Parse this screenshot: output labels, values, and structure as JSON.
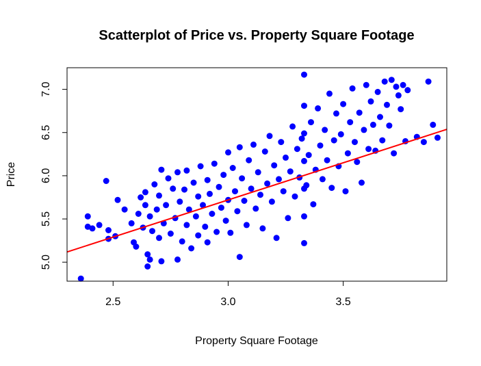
{
  "chart_data": {
    "type": "scatter",
    "title": "Scatterplot of Price vs. Property Square Footage",
    "xlabel": "Property Square Footage",
    "ylabel": "Price",
    "xlim": [
      2.3,
      3.95
    ],
    "ylim": [
      4.78,
      7.25
    ],
    "x_ticks": [
      2.5,
      3.0,
      3.5
    ],
    "x_tick_labels": [
      "2.5",
      "3.0",
      "3.5"
    ],
    "y_ticks": [
      5.0,
      5.5,
      6.0,
      6.5,
      7.0
    ],
    "y_tick_labels": [
      "5.0",
      "5.5",
      "6.0",
      "6.5",
      "7.0"
    ],
    "grid": false,
    "legend": "none",
    "point_color": "#0000ff",
    "line_color": "#ff0000",
    "regression_line": {
      "intercept": 3.14,
      "slope": 0.86
    },
    "series": [
      {
        "values": [
          [
            2.36,
            4.81
          ],
          [
            2.39,
            5.53
          ],
          [
            2.39,
            5.41
          ],
          [
            2.41,
            5.39
          ],
          [
            2.44,
            5.43
          ],
          [
            2.47,
            5.94
          ],
          [
            2.48,
            5.27
          ],
          [
            2.48,
            5.37
          ],
          [
            2.51,
            5.3
          ],
          [
            2.52,
            5.72
          ],
          [
            2.55,
            5.61
          ],
          [
            2.58,
            5.45
          ],
          [
            2.59,
            5.23
          ],
          [
            2.6,
            5.18
          ],
          [
            2.61,
            5.56
          ],
          [
            2.62,
            5.75
          ],
          [
            2.63,
            5.4
          ],
          [
            2.64,
            5.66
          ],
          [
            2.64,
            5.81
          ],
          [
            2.65,
            5.09
          ],
          [
            2.65,
            4.95
          ],
          [
            2.66,
            5.03
          ],
          [
            2.66,
            5.53
          ],
          [
            2.67,
            5.36
          ],
          [
            2.68,
            5.9
          ],
          [
            2.69,
            5.61
          ],
          [
            2.7,
            5.28
          ],
          [
            2.7,
            5.77
          ],
          [
            2.71,
            5.01
          ],
          [
            2.71,
            6.07
          ],
          [
            2.72,
            5.45
          ],
          [
            2.73,
            5.66
          ],
          [
            2.74,
            5.97
          ],
          [
            2.75,
            5.33
          ],
          [
            2.76,
            5.85
          ],
          [
            2.77,
            5.51
          ],
          [
            2.78,
            5.03
          ],
          [
            2.78,
            6.04
          ],
          [
            2.79,
            5.7
          ],
          [
            2.8,
            5.24
          ],
          [
            2.81,
            5.84
          ],
          [
            2.82,
            5.43
          ],
          [
            2.82,
            6.06
          ],
          [
            2.83,
            5.61
          ],
          [
            2.84,
            5.16
          ],
          [
            2.85,
            5.92
          ],
          [
            2.86,
            5.53
          ],
          [
            2.87,
            5.76
          ],
          [
            2.87,
            5.31
          ],
          [
            2.88,
            6.11
          ],
          [
            2.89,
            5.66
          ],
          [
            2.9,
            5.41
          ],
          [
            2.91,
            5.95
          ],
          [
            2.91,
            5.23
          ],
          [
            2.92,
            5.79
          ],
          [
            2.93,
            5.56
          ],
          [
            2.94,
            6.14
          ],
          [
            2.95,
            5.35
          ],
          [
            2.96,
            5.87
          ],
          [
            2.97,
            5.63
          ],
          [
            2.98,
            6.01
          ],
          [
            2.99,
            5.48
          ],
          [
            3.0,
            6.27
          ],
          [
            3.0,
            5.72
          ],
          [
            3.01,
            5.34
          ],
          [
            3.02,
            6.09
          ],
          [
            3.03,
            5.82
          ],
          [
            3.04,
            5.59
          ],
          [
            3.05,
            5.06
          ],
          [
            3.05,
            6.33
          ],
          [
            3.06,
            5.97
          ],
          [
            3.07,
            5.71
          ],
          [
            3.08,
            5.43
          ],
          [
            3.09,
            6.18
          ],
          [
            3.1,
            5.85
          ],
          [
            3.11,
            6.36
          ],
          [
            3.12,
            5.62
          ],
          [
            3.13,
            6.04
          ],
          [
            3.14,
            5.78
          ],
          [
            3.15,
            5.39
          ],
          [
            3.16,
            6.28
          ],
          [
            3.17,
            5.91
          ],
          [
            3.18,
            6.46
          ],
          [
            3.19,
            5.7
          ],
          [
            3.2,
            6.12
          ],
          [
            3.21,
            5.28
          ],
          [
            3.22,
            5.96
          ],
          [
            3.23,
            6.39
          ],
          [
            3.24,
            5.82
          ],
          [
            3.25,
            6.21
          ],
          [
            3.26,
            5.51
          ],
          [
            3.27,
            6.05
          ],
          [
            3.28,
            6.57
          ],
          [
            3.29,
            5.76
          ],
          [
            3.3,
            6.31
          ],
          [
            3.31,
            5.98
          ],
          [
            3.32,
            6.43
          ],
          [
            3.33,
            5.22
          ],
          [
            3.33,
            5.53
          ],
          [
            3.33,
            5.85
          ],
          [
            3.33,
            6.17
          ],
          [
            3.33,
            6.49
          ],
          [
            3.33,
            6.81
          ],
          [
            3.33,
            7.17
          ],
          [
            3.34,
            5.89
          ],
          [
            3.35,
            6.24
          ],
          [
            3.36,
            6.62
          ],
          [
            3.37,
            5.67
          ],
          [
            3.38,
            6.07
          ],
          [
            3.39,
            6.78
          ],
          [
            3.4,
            6.35
          ],
          [
            3.41,
            5.96
          ],
          [
            3.42,
            6.53
          ],
          [
            3.43,
            6.18
          ],
          [
            3.44,
            6.95
          ],
          [
            3.45,
            5.86
          ],
          [
            3.46,
            6.41
          ],
          [
            3.47,
            6.72
          ],
          [
            3.48,
            6.11
          ],
          [
            3.49,
            6.48
          ],
          [
            3.5,
            6.83
          ],
          [
            3.51,
            5.82
          ],
          [
            3.52,
            6.26
          ],
          [
            3.53,
            6.62
          ],
          [
            3.54,
            7.01
          ],
          [
            3.55,
            6.39
          ],
          [
            3.56,
            6.16
          ],
          [
            3.57,
            6.73
          ],
          [
            3.58,
            5.92
          ],
          [
            3.59,
            6.53
          ],
          [
            3.6,
            7.05
          ],
          [
            3.61,
            6.31
          ],
          [
            3.62,
            6.86
          ],
          [
            3.63,
            6.59
          ],
          [
            3.64,
            6.29
          ],
          [
            3.65,
            6.97
          ],
          [
            3.66,
            6.68
          ],
          [
            3.67,
            6.41
          ],
          [
            3.68,
            7.09
          ],
          [
            3.69,
            6.82
          ],
          [
            3.7,
            6.58
          ],
          [
            3.71,
            7.11
          ],
          [
            3.72,
            6.26
          ],
          [
            3.73,
            7.03
          ],
          [
            3.74,
            6.93
          ],
          [
            3.75,
            6.77
          ],
          [
            3.76,
            7.05
          ],
          [
            3.77,
            6.4
          ],
          [
            3.78,
            6.99
          ],
          [
            3.82,
            6.45
          ],
          [
            3.85,
            6.39
          ],
          [
            3.87,
            7.09
          ],
          [
            3.89,
            6.59
          ],
          [
            3.91,
            6.44
          ]
        ]
      }
    ]
  }
}
